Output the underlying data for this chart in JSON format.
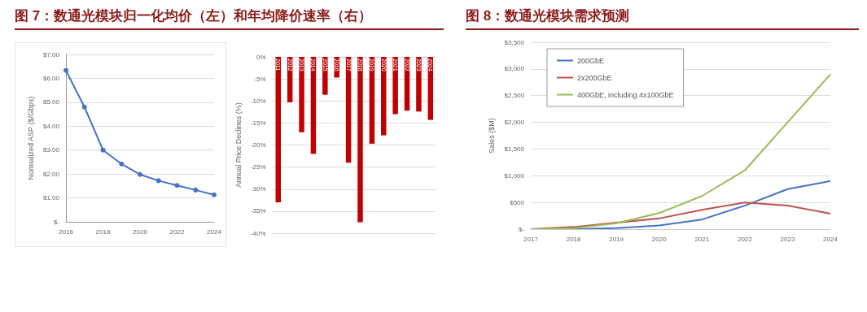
{
  "chart_data": [
    {
      "type": "line",
      "title": "图 7：数通光模块归一化均价（左）和年均降价速率（右）",
      "ylabel": "Normalized ASP ($/Gbps)",
      "x": [
        2016,
        2017,
        2018,
        2019,
        2020,
        2021,
        2022,
        2023,
        2024
      ],
      "series": [
        {
          "color": "#4472c4",
          "values": [
            6.33,
            4.8,
            3.0,
            2.42,
            1.98,
            1.72,
            1.52,
            1.33,
            1.13
          ]
        }
      ],
      "xlim": [
        2016,
        2024
      ],
      "xticks": [
        2016,
        2018,
        2020,
        2022,
        2024
      ],
      "ylim": [
        0,
        7
      ],
      "yticks": [
        {
          "value": 0,
          "label": "$-"
        },
        {
          "value": 1,
          "label": "$1.00"
        },
        {
          "value": 2,
          "label": "$2.00"
        },
        {
          "value": 3,
          "label": "$3.00"
        },
        {
          "value": 4,
          "label": "$4.00"
        },
        {
          "value": 5,
          "label": "$5.00"
        },
        {
          "value": 6,
          "label": "$6.00"
        },
        {
          "value": 7,
          "label": "$7.00"
        }
      ],
      "grid": "y",
      "marker": "circle",
      "legend": false
    },
    {
      "type": "bar",
      "ylabel": "Annual Price Declines (%)",
      "categories": [
        "2011",
        "2012",
        "2013",
        "2014",
        "2015",
        "2016",
        "2017",
        "2018",
        "2019",
        "2020",
        "2021",
        "2022",
        "2023",
        "2024"
      ],
      "series": [
        {
          "color": "#c00000",
          "values": [
            -33,
            -10.3,
            -17.1,
            -22,
            -8.6,
            -4.7,
            -24,
            -37.5,
            -19.7,
            -17.8,
            -13,
            -12.2,
            -12.4,
            -14.3
          ]
        }
      ],
      "ylim": [
        -40,
        0
      ],
      "yticks": [
        {
          "value": -40,
          "label": "-40%"
        },
        {
          "value": -35,
          "label": "-35%"
        },
        {
          "value": -30,
          "label": "-30%"
        },
        {
          "value": -25,
          "label": "-25%"
        },
        {
          "value": -20,
          "label": "-20%"
        },
        {
          "value": -15,
          "label": "-15%"
        },
        {
          "value": -10,
          "label": "-10%"
        },
        {
          "value": -5,
          "label": "-5%"
        },
        {
          "value": 0,
          "label": "0%"
        }
      ],
      "grid": "y",
      "legend": false
    },
    {
      "type": "line",
      "title": "图 8：数通光模块需求预测",
      "ylabel": "Sales ($M)",
      "categories": [
        "2017",
        "2018",
        "2019",
        "2020",
        "2021",
        "2022",
        "2023",
        "2024"
      ],
      "series": [
        {
          "name": "200GbE",
          "color": "#4472c4",
          "values": [
            0,
            0,
            20,
            70,
            180,
            440,
            750,
            900
          ]
        },
        {
          "name": "2x200GbE",
          "color": "#c0504d",
          "values": [
            0,
            40,
            120,
            200,
            360,
            500,
            440,
            290
          ]
        },
        {
          "name": "400GbE, including 4x100GbE",
          "color": "#9bbb59",
          "values": [
            0,
            20,
            110,
            300,
            620,
            1100,
            2000,
            2900
          ]
        }
      ],
      "ylim": [
        0,
        3500
      ],
      "yticks": [
        {
          "value": 0,
          "label": "$-"
        },
        {
          "value": 500,
          "label": "$500"
        },
        {
          "value": 1000,
          "label": "$1,000"
        },
        {
          "value": 1500,
          "label": "$1,500"
        },
        {
          "value": 2000,
          "label": "$2,000"
        },
        {
          "value": 2500,
          "label": "$2,500"
        },
        {
          "value": 3000,
          "label": "$3,000"
        },
        {
          "value": 3500,
          "label": "$3,500"
        }
      ],
      "grid": "y",
      "marker": "none",
      "legend": "top left"
    }
  ]
}
